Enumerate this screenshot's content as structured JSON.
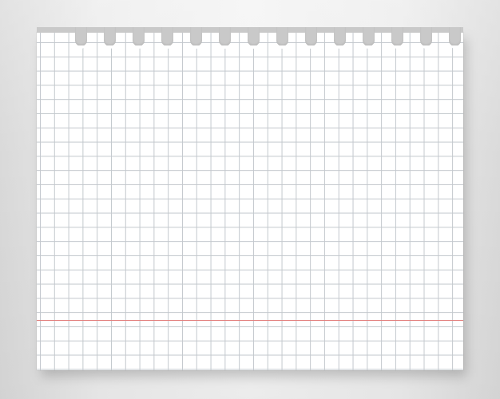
{
  "background": {
    "colors": [
      "#d9d9d9",
      "#f3f3f3"
    ]
  },
  "sheet": {
    "kind": "grid-notebook-paper",
    "paper_color": "#ffffff",
    "grid_color": "#c3c8cd",
    "margin_line_color": "#e3807e",
    "hole_color": "#c9c9c9",
    "hole_count": 14,
    "text": ""
  }
}
